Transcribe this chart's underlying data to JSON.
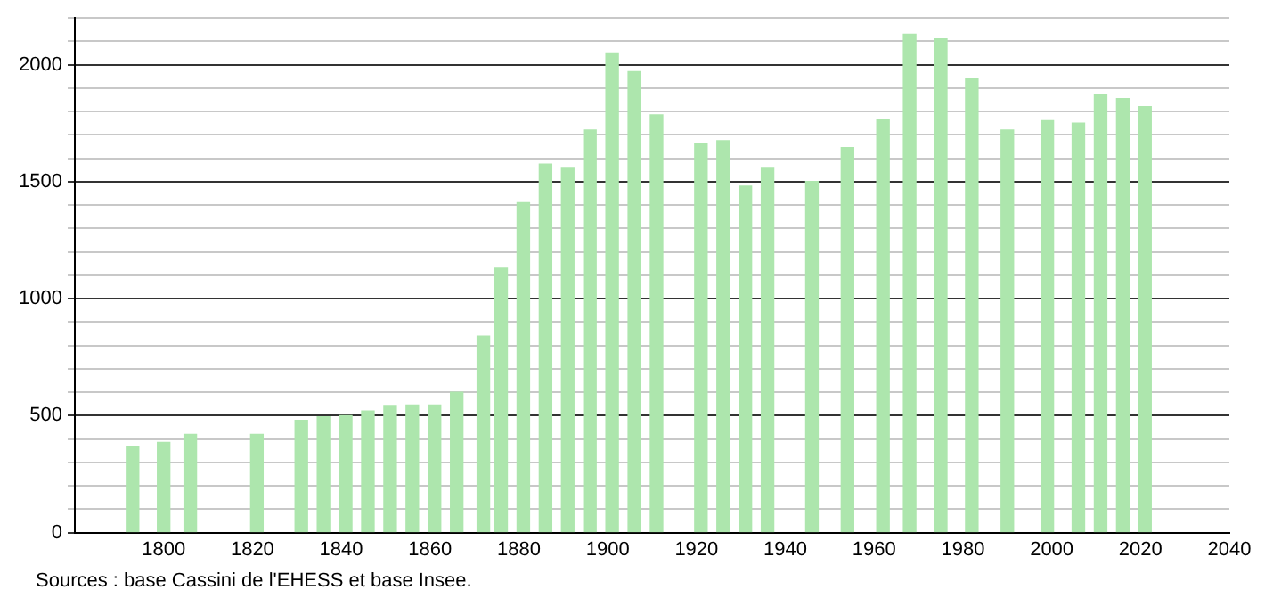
{
  "chart_data": {
    "type": "bar",
    "x": [
      1793,
      1800,
      1806,
      1821,
      1831,
      1836,
      1841,
      1846,
      1851,
      1856,
      1861,
      1866,
      1872,
      1876,
      1881,
      1886,
      1891,
      1896,
      1901,
      1906,
      1911,
      1921,
      1926,
      1931,
      1936,
      1946,
      1954,
      1962,
      1968,
      1975,
      1982,
      1990,
      1999,
      2006,
      2011,
      2016,
      2021
    ],
    "values": [
      368,
      385,
      420,
      420,
      480,
      495,
      500,
      520,
      540,
      545,
      545,
      600,
      840,
      1130,
      1410,
      1575,
      1560,
      1720,
      2050,
      1970,
      1785,
      1660,
      1675,
      1480,
      1560,
      1500,
      1645,
      1765,
      2130,
      2110,
      1940,
      1720,
      1760,
      1750,
      1870,
      1855,
      1820
    ],
    "color": "#ade6ad",
    "xlim": [
      1780,
      2040
    ],
    "xticks": [
      1800,
      1820,
      1840,
      1860,
      1880,
      1900,
      1920,
      1940,
      1960,
      1980,
      2000,
      2020,
      2040
    ],
    "ylim": [
      0,
      2200
    ],
    "yticks": [
      0,
      {
        "value": 100,
        "label": null
      },
      {
        "value": 200,
        "label": null
      },
      {
        "value": 300,
        "label": null
      },
      {
        "value": 400,
        "label": null
      },
      500,
      {
        "value": 600,
        "label": null
      },
      {
        "value": 700,
        "label": null
      },
      {
        "value": 800,
        "label": null
      },
      {
        "value": 900,
        "label": null
      },
      1000,
      {
        "value": 1100,
        "label": null
      },
      {
        "value": 1200,
        "label": null
      },
      {
        "value": 1300,
        "label": null
      },
      {
        "value": 1400,
        "label": null
      },
      1500,
      {
        "value": 1600,
        "label": null
      },
      {
        "value": 1700,
        "label": null
      },
      {
        "value": 1800,
        "label": null
      },
      {
        "value": 1900,
        "label": null
      },
      2000,
      {
        "value": 2100,
        "label": null
      },
      {
        "value": 2200,
        "label": null
      }
    ],
    "grid": "y",
    "annotations": [
      "Sources : base Cassini de l'EHESS et base Insee."
    ]
  }
}
